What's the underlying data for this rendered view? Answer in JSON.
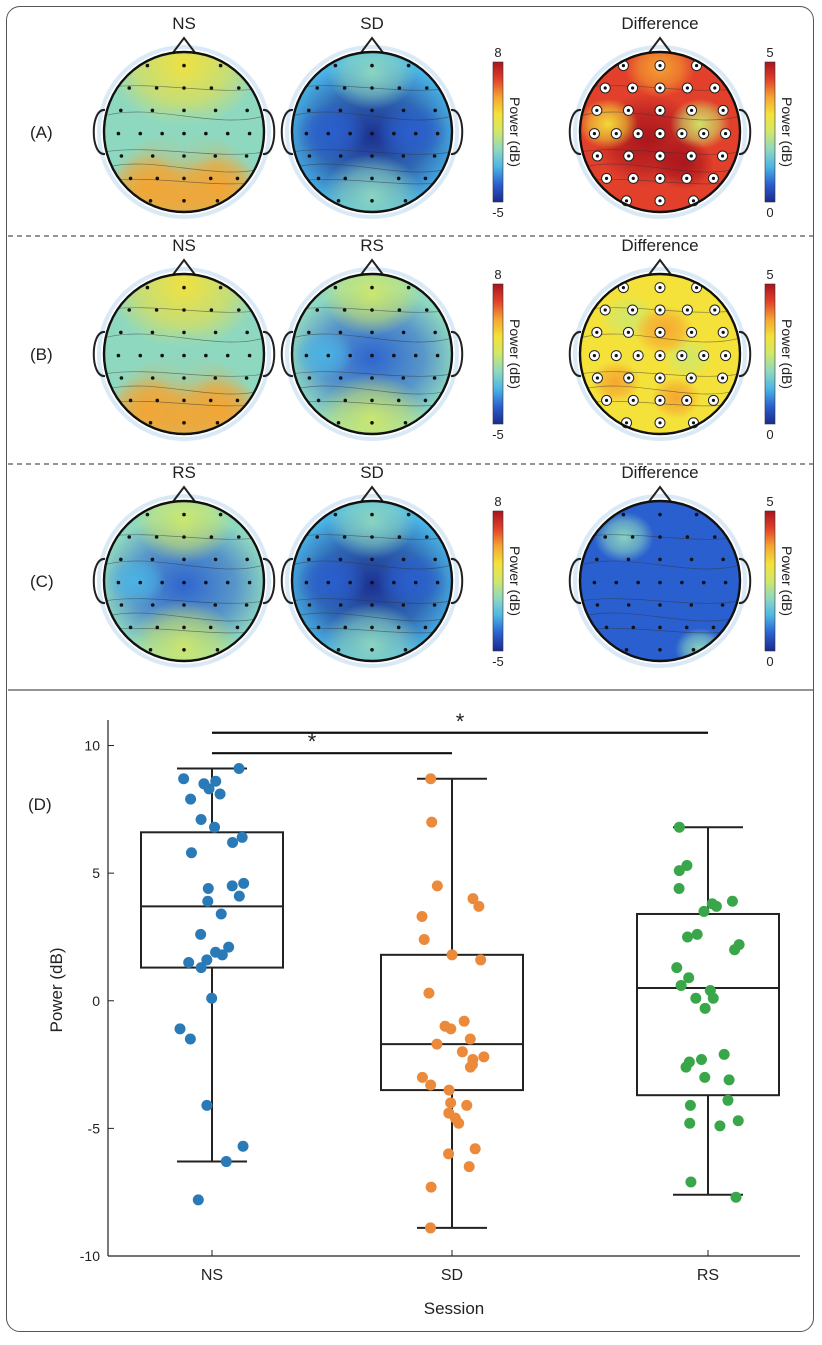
{
  "panels": [
    {
      "label": "(A)",
      "titles": [
        "NS",
        "SD",
        "Difference"
      ],
      "maps": [
        "ns",
        "sd",
        "diffA"
      ],
      "scale_main": [
        "8",
        "-5"
      ],
      "scale_diff": [
        "5",
        "0"
      ],
      "diff_sig": true
    },
    {
      "label": "(B)",
      "titles": [
        "NS",
        "RS",
        "Difference"
      ],
      "maps": [
        "ns",
        "rs",
        "diffB"
      ],
      "scale_main": [
        "8",
        "-5"
      ],
      "scale_diff": [
        "5",
        "0"
      ],
      "diff_sig": true
    },
    {
      "label": "(C)",
      "titles": [
        "RS",
        "SD",
        "Difference"
      ],
      "maps": [
        "rs",
        "sd",
        "diffC"
      ],
      "scale_main": [
        "8",
        "-5"
      ],
      "scale_diff": [
        "5",
        "0"
      ],
      "diff_sig": false
    }
  ],
  "colorbar_label": "Power (dB)",
  "colors": {
    "colormap": [
      "#1a2a8c",
      "#2a5fd0",
      "#4ab5e6",
      "#8ed8c0",
      "#cfe86a",
      "#f4e23a",
      "#f5a431",
      "#e2402b",
      "#a8141c"
    ],
    "ns": "#2a7ab8",
    "sd": "#ec8a3c",
    "rs": "#3aa64a"
  },
  "chart_data": {
    "type": "box",
    "label": "(D)",
    "categories": [
      "NS",
      "SD",
      "RS"
    ],
    "xlabel": "Session",
    "ylabel": "Power (dB)",
    "ylim": [
      -10,
      11
    ],
    "yticks": [
      10,
      5,
      0,
      -5,
      -10
    ],
    "boxes": [
      {
        "name": "NS",
        "whisker_low": -6.3,
        "q1": 1.3,
        "median": 3.7,
        "q3": 6.6,
        "whisker_high": 9.1
      },
      {
        "name": "SD",
        "whisker_low": -8.9,
        "q1": -3.5,
        "median": -1.7,
        "q3": 1.8,
        "whisker_high": 8.7
      },
      {
        "name": "RS",
        "whisker_low": -7.6,
        "q1": -3.7,
        "median": 0.5,
        "q3": 3.4,
        "whisker_high": 6.8
      }
    ],
    "points": [
      [
        9.1,
        8.7,
        8.6,
        8.5,
        8.3,
        8.1,
        7.9,
        7.1,
        6.8,
        6.4,
        6.2,
        5.8,
        4.6,
        4.5,
        4.4,
        4.1,
        3.9,
        3.4,
        2.6,
        2.1,
        1.9,
        1.8,
        1.6,
        1.5,
        1.3,
        0.1,
        -1.1,
        -1.5,
        -4.1,
        -5.7,
        -6.3,
        -7.8
      ],
      [
        8.7,
        7.0,
        4.5,
        4.0,
        3.7,
        3.3,
        2.4,
        1.8,
        1.6,
        0.3,
        -0.8,
        -1.0,
        -1.1,
        -1.5,
        -1.7,
        -2.0,
        -2.2,
        -2.3,
        -2.5,
        -2.6,
        -3.0,
        -3.3,
        -3.5,
        -4.0,
        -4.1,
        -4.4,
        -4.6,
        -4.8,
        -5.8,
        -6.0,
        -6.5,
        -7.3,
        -8.9
      ],
      [
        6.8,
        5.3,
        5.1,
        4.4,
        3.9,
        3.8,
        3.7,
        3.5,
        2.6,
        2.5,
        2.2,
        2.0,
        1.3,
        0.9,
        0.6,
        0.4,
        0.1,
        0.1,
        -0.3,
        -2.1,
        -2.3,
        -2.4,
        -2.6,
        -3.0,
        -3.1,
        -3.9,
        -4.1,
        -4.7,
        -4.8,
        -4.9,
        -7.1,
        -7.7
      ]
    ],
    "significance": [
      {
        "from": "NS",
        "to": "SD",
        "label": "*",
        "y": 9.7
      },
      {
        "from": "NS",
        "to": "RS",
        "label": "*",
        "y": 10.5
      }
    ]
  }
}
